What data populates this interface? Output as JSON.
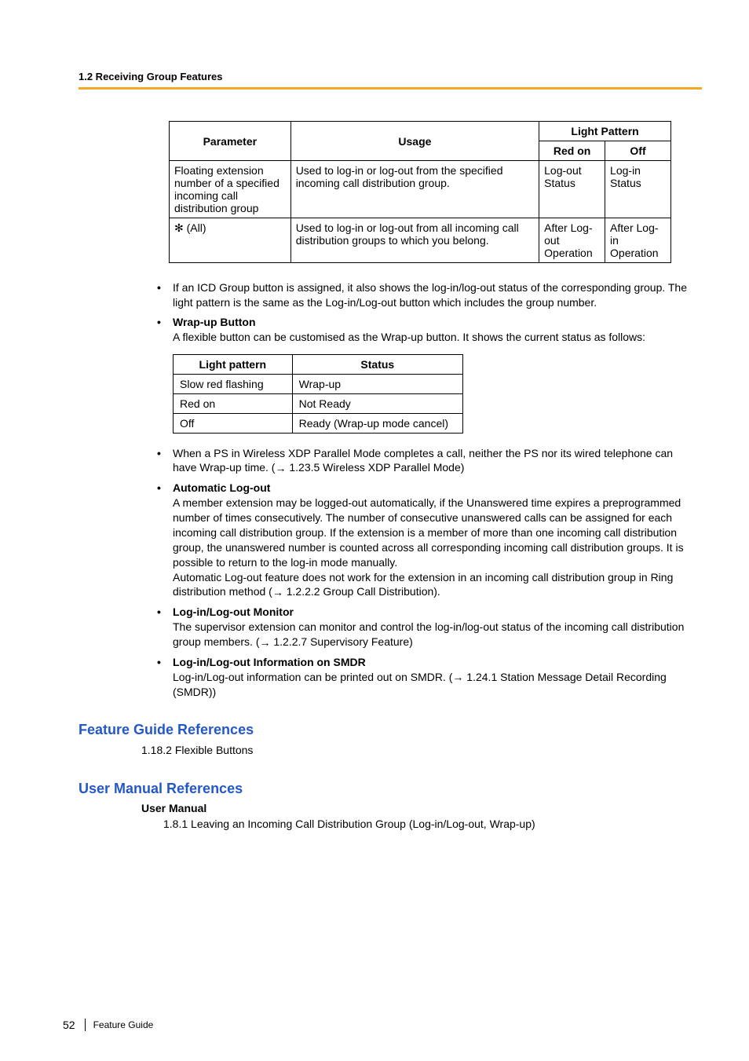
{
  "header": {
    "section": "1.2 Receiving Group Features"
  },
  "table1": {
    "headers": {
      "parameter": "Parameter",
      "usage": "Usage",
      "light_pattern": "Light Pattern",
      "red_on": "Red on",
      "off": "Off"
    },
    "rows": [
      {
        "parameter": "Floating extension number of a specified incoming call distribution group",
        "usage": "Used to log-in or log-out from the specified incoming call distribution group.",
        "red_on": "Log-out Status",
        "off": "Log-in Status"
      },
      {
        "parameter_star": true,
        "parameter": " (All)",
        "usage": "Used to log-in or log-out from all incoming call distribution groups to which you belong.",
        "red_on": "After Log-out Operation",
        "off": "After Log-in Operation"
      }
    ]
  },
  "bullets": {
    "b1": "If an ICD Group button is assigned, it also shows the log-in/log-out status of the corresponding group. The light pattern is the same as the Log-in/Log-out button which includes the group number.",
    "b2_title": "Wrap-up Button",
    "b2_text": "A flexible button can be customised as the Wrap-up button. It shows the current status as follows:",
    "b3_pre": "When a PS in Wireless XDP Parallel Mode completes a call, neither the PS nor its wired telephone can have Wrap-up time. (",
    "b3_ref": " 1.23.5 Wireless XDP Parallel Mode)",
    "b4_title": "Automatic Log-out",
    "b4_text1": "A member extension may be logged-out automatically, if the Unanswered time expires a preprogrammed number of times consecutively. The number of consecutive unanswered calls can be assigned for each incoming call distribution group. If the extension is a member of more than one incoming call distribution group, the unanswered number is counted across all corresponding incoming call distribution groups. It is possible to return to the log-in mode manually.",
    "b4_text2_pre": "Automatic Log-out feature does not work for the extension in an incoming call distribution group in Ring distribution method (",
    "b4_text2_ref": " 1.2.2.2 Group Call Distribution).",
    "b5_title": "Log-in/Log-out Monitor",
    "b5_text_pre": "The supervisor extension can monitor and control the log-in/log-out status of the incoming call distribution group members. (",
    "b5_text_ref": " 1.2.2.7 Supervisory Feature)",
    "b6_title": "Log-in/Log-out Information on SMDR",
    "b6_text_pre": "Log-in/Log-out information can be printed out on SMDR. (",
    "b6_text_ref": " 1.24.1 Station Message Detail Recording (SMDR))"
  },
  "table2": {
    "headers": {
      "light_pattern": "Light pattern",
      "status": "Status"
    },
    "rows": [
      {
        "lp": "Slow red flashing",
        "st": "Wrap-up"
      },
      {
        "lp": "Red on",
        "st": "Not Ready"
      },
      {
        "lp": "Off",
        "st": "Ready (Wrap-up mode cancel)"
      }
    ]
  },
  "heading_fgr": "Feature Guide References",
  "fgr_line": "1.18.2 Flexible Buttons",
  "heading_umr": "User Manual References",
  "um_sub": "User Manual",
  "um_line": "1.8.1 Leaving an Incoming Call Distribution Group (Log-in/Log-out, Wrap-up)",
  "footer": {
    "page": "52",
    "title": "Feature Guide"
  },
  "colors": {
    "orange": "#f5a623",
    "blue": "#2458c9",
    "black": "#000000",
    "bg": "#ffffff"
  }
}
